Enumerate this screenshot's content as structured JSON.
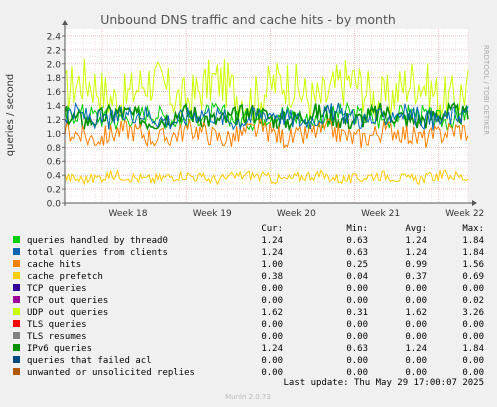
{
  "chart_data": {
    "type": "line",
    "title": "Unbound DNS traffic and cache hits - by month",
    "ylabel": "queries / second",
    "watermark": "RRDTOOL / TOBI OETIKER",
    "footer": "Munin 2.0.73",
    "ylim": [
      0,
      2.5
    ],
    "yticks": [
      "0.0",
      "0.2",
      "0.4",
      "0.6",
      "0.8",
      "1.0",
      "1.2",
      "1.4",
      "1.6",
      "1.8",
      "2.0",
      "2.2",
      "2.4"
    ],
    "xticks": [
      "Week 18",
      "Week 19",
      "Week 20",
      "Week 21",
      "Week 22"
    ],
    "grid": true,
    "legend_header": {
      "cur": "Cur:",
      "min": "Min:",
      "avg": "Avg:",
      "max": "Max:"
    },
    "last_update": "Last update:  Thu May 29 17:00:07 2025",
    "series": [
      {
        "name": "queries handled by thread0",
        "color": "#00cc00",
        "cur": "1.24",
        "min": "0.63",
        "avg": "1.24",
        "max": "1.84"
      },
      {
        "name": "total queries from clients",
        "color": "#0066b3",
        "cur": "1.24",
        "min": "0.63",
        "avg": "1.24",
        "max": "1.84"
      },
      {
        "name": "cache hits",
        "color": "#ff8000",
        "cur": "1.00",
        "min": "0.25",
        "avg": "0.99",
        "max": "1.56"
      },
      {
        "name": "cache prefetch",
        "color": "#ffcc00",
        "cur": "0.38",
        "min": "0.04",
        "avg": "0.37",
        "max": "0.69"
      },
      {
        "name": "TCP queries",
        "color": "#330099",
        "cur": "0.00",
        "min": "0.00",
        "avg": "0.00",
        "max": "0.00"
      },
      {
        "name": "TCP out queries",
        "color": "#990099",
        "cur": "0.00",
        "min": "0.00",
        "avg": "0.00",
        "max": "0.02"
      },
      {
        "name": "UDP out queries",
        "color": "#ccff00",
        "cur": "1.62",
        "min": "0.31",
        "avg": "1.62",
        "max": "3.26"
      },
      {
        "name": "TLS queries",
        "color": "#ff0000",
        "cur": "0.00",
        "min": "0.00",
        "avg": "0.00",
        "max": "0.00"
      },
      {
        "name": "TLS resumes",
        "color": "#808080",
        "cur": "0.00",
        "min": "0.00",
        "avg": "0.00",
        "max": "0.00"
      },
      {
        "name": "IPv6 queries",
        "color": "#008f00",
        "cur": "1.24",
        "min": "0.63",
        "avg": "1.24",
        "max": "1.84"
      },
      {
        "name": "queries that failed acl",
        "color": "#00487d",
        "cur": "0.00",
        "min": "0.00",
        "avg": "0.00",
        "max": "0.00"
      },
      {
        "name": "unwanted or unsolicited replies",
        "color": "#b35a00",
        "cur": "0.00",
        "min": "0.00",
        "avg": "0.00",
        "max": "0.00"
      }
    ]
  }
}
